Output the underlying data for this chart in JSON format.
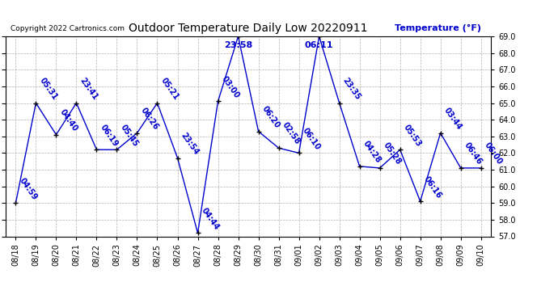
{
  "title": "Outdoor Temperature Daily Low 20220911",
  "copyright": "Copyright 2022 Cartronics.com",
  "ylabel": "Temperature (°F)",
  "ylabel_color": "#0000cc",
  "line_color": "#0000cc",
  "background_color": "#ffffff",
  "grid_color": "#aaaaaa",
  "ylim_min": 57.0,
  "ylim_max": 69.0,
  "yticks": [
    57.0,
    58.0,
    59.0,
    60.0,
    61.0,
    62.0,
    63.0,
    64.0,
    65.0,
    66.0,
    67.0,
    68.0,
    69.0
  ],
  "dates": [
    "08/18",
    "08/19",
    "08/20",
    "08/21",
    "08/22",
    "08/23",
    "08/24",
    "08/25",
    "08/26",
    "08/27",
    "08/28",
    "08/29",
    "08/30",
    "08/31",
    "09/01",
    "09/02",
    "09/03",
    "09/04",
    "09/05",
    "09/06",
    "09/07",
    "09/08",
    "09/09",
    "09/10"
  ],
  "values": [
    59.0,
    65.0,
    63.1,
    65.0,
    62.2,
    62.2,
    63.2,
    65.0,
    61.7,
    57.2,
    65.1,
    69.0,
    63.3,
    62.3,
    62.0,
    69.0,
    65.0,
    61.2,
    61.1,
    62.2,
    59.1,
    63.2,
    61.1,
    61.1
  ],
  "time_labels": [
    "04:59",
    "05:31",
    "04:40",
    "23:41",
    "06:19",
    "05:45",
    "06:26",
    "05:21",
    "23:54",
    "04:44",
    "03:00",
    "23:58",
    "06:20",
    "02:58",
    "06:10",
    "06:11",
    "23:35",
    "04:28",
    "05:28",
    "05:53",
    "06:16",
    "03:44",
    "06:46",
    "06:00"
  ],
  "special_indices": [
    11,
    15
  ],
  "label_rotation": -55,
  "label_fontsize": 7,
  "special_fontsize": 8
}
